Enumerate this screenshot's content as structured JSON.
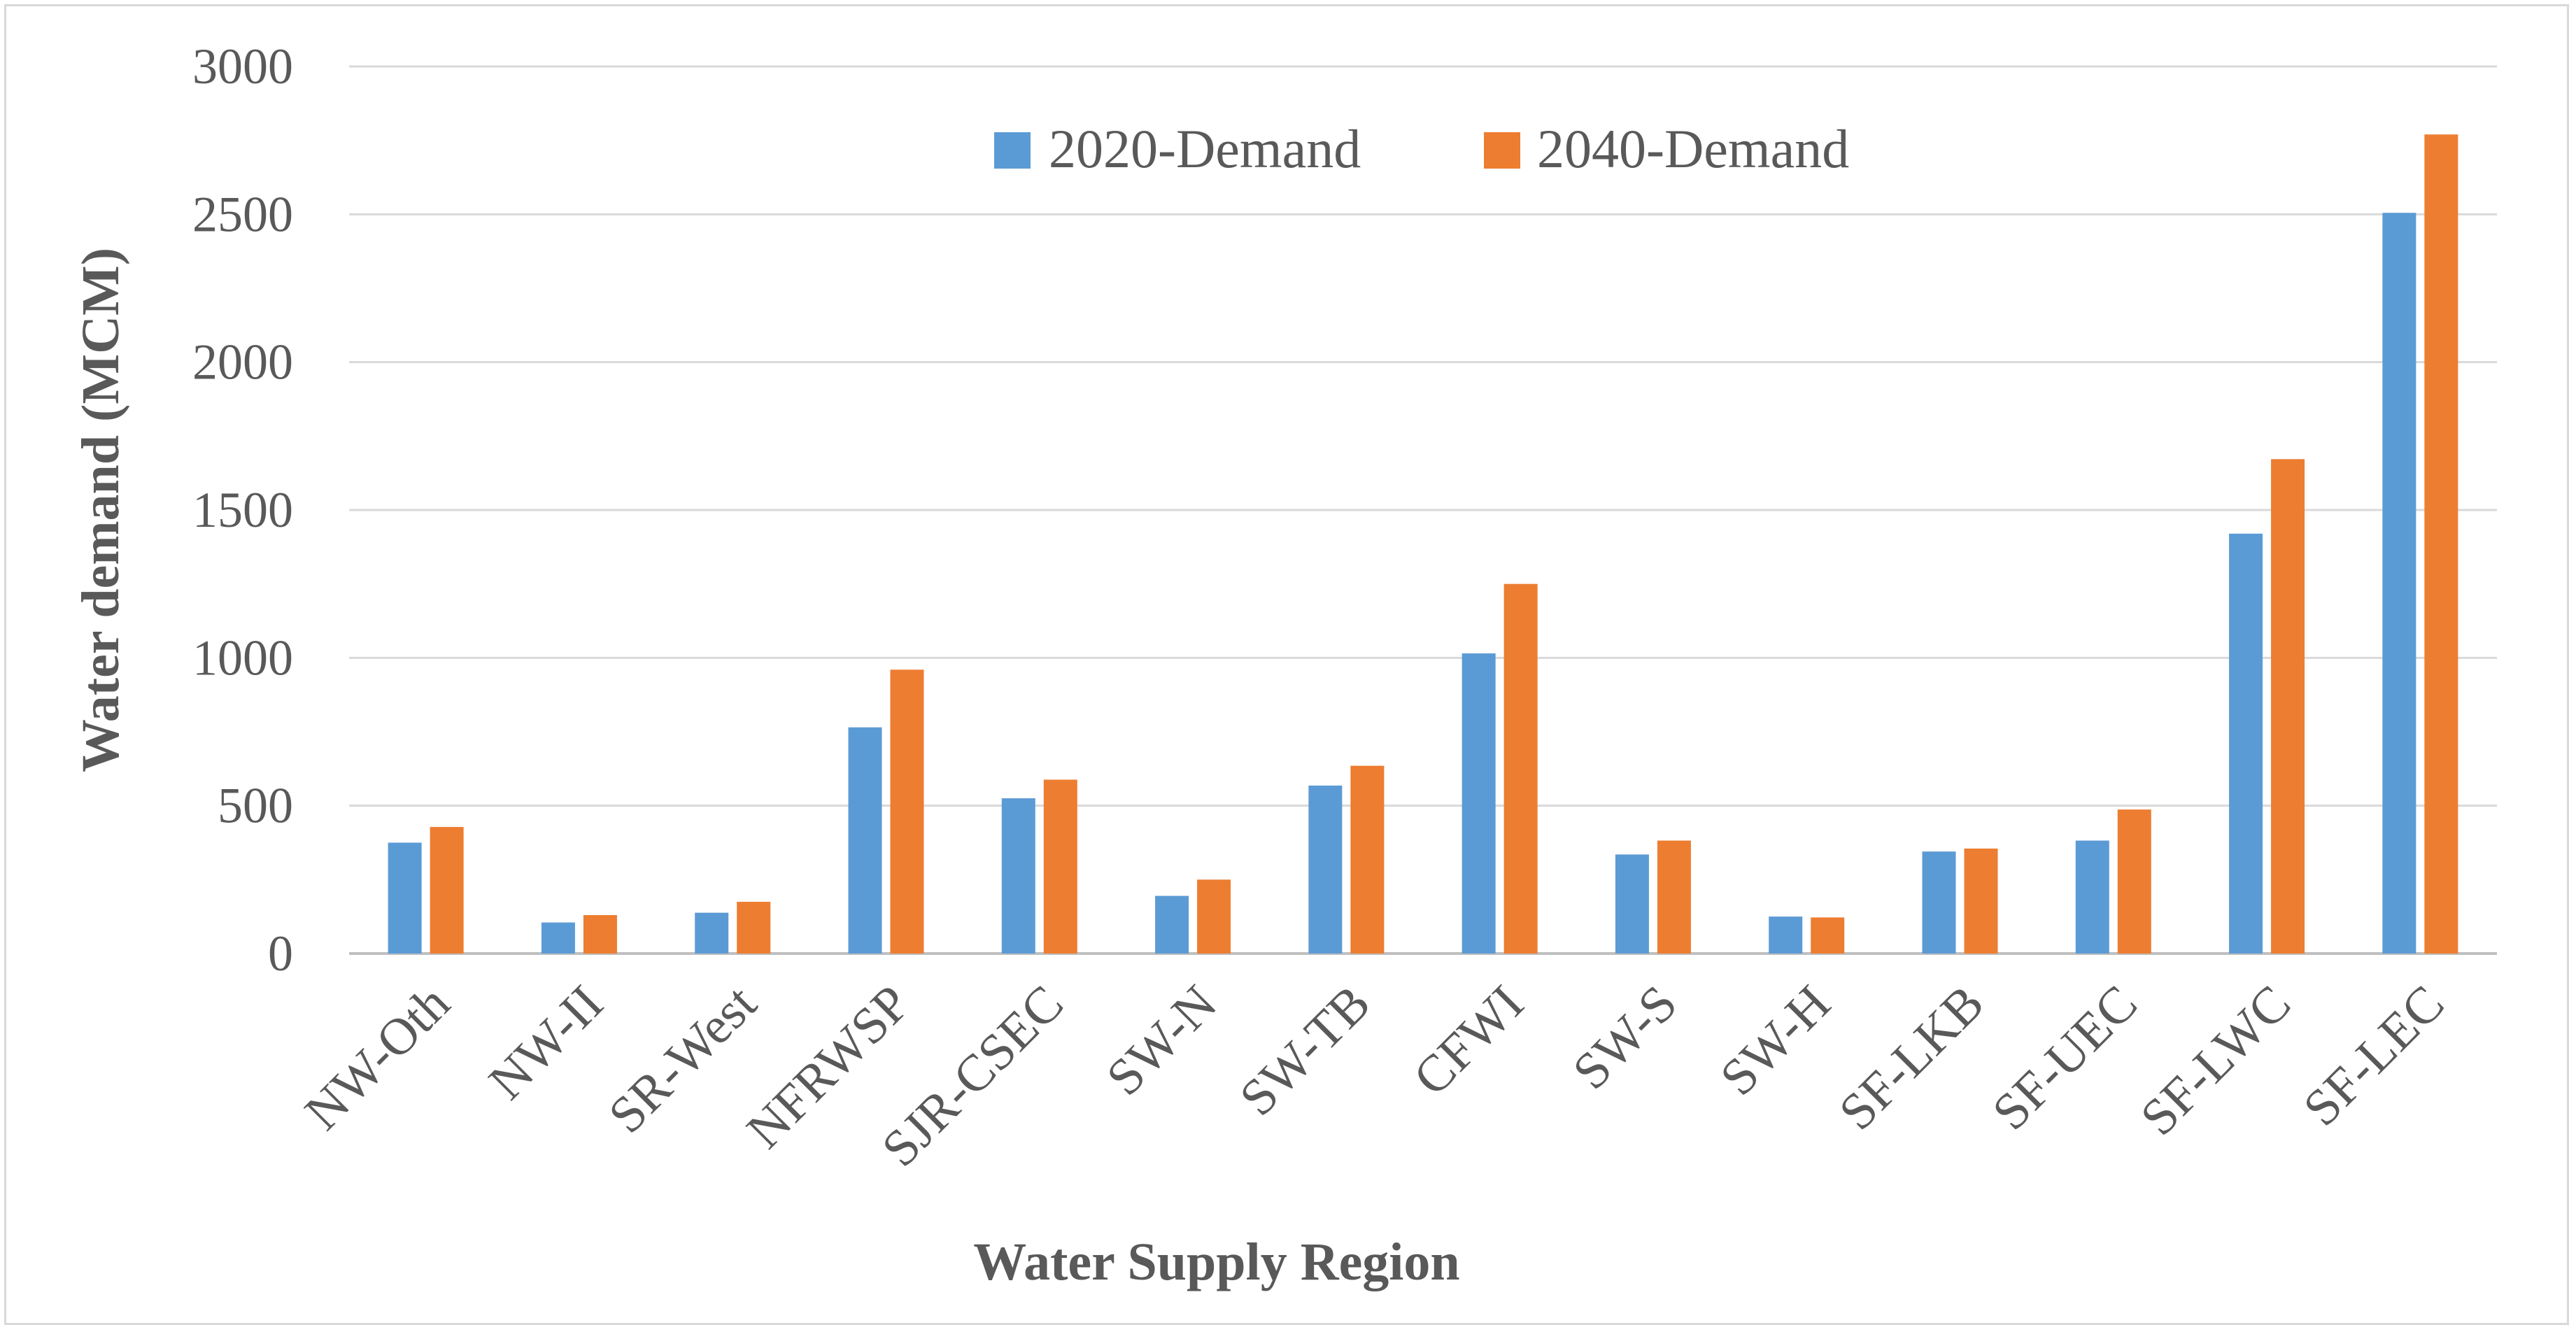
{
  "chart_data": {
    "type": "bar",
    "title": "",
    "xlabel": "Water Supply Region",
    "ylabel": "Water demand (MCM)",
    "ylim": [
      0,
      3000
    ],
    "yticks": [
      0,
      500,
      1000,
      1500,
      2000,
      2500,
      3000
    ],
    "grid": true,
    "legend_position": "top-center",
    "categories": [
      "NW-Oth",
      "NW-II",
      "SR-West",
      "NFRWSP",
      "SJR-CSEC",
      "SW-N",
      "SW-TB",
      "CFWI",
      "SW-S",
      "SW-H",
      "SF-LKB",
      "SF-UEC",
      "SF-LWC",
      "SF-LEC"
    ],
    "series": [
      {
        "name": "2020-Demand",
        "color": "#5b9bd5",
        "values": [
          375,
          105,
          138,
          765,
          525,
          195,
          568,
          1015,
          335,
          125,
          345,
          382,
          1420,
          2505
        ]
      },
      {
        "name": "2040-Demand",
        "color": "#ed7d31",
        "values": [
          428,
          130,
          175,
          960,
          588,
          250,
          635,
          1250,
          382,
          122,
          355,
          487,
          1672,
          2770
        ]
      }
    ]
  }
}
